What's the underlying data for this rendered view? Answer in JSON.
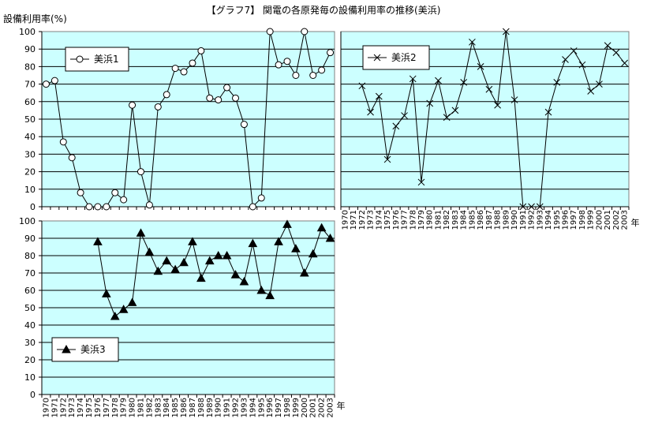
{
  "title": "【グラフ7】 関電の各原発毎の設備利用率の推移(美浜)",
  "ylabel": "設備利用率(%)",
  "xunit": "年",
  "colors": {
    "plot_bg": "#ccffff",
    "line": "#000000",
    "grid": "#000000"
  },
  "chart_data": [
    {
      "type": "line",
      "name": "美浜1",
      "marker": "circle",
      "legend_position": "top-left",
      "ylim": [
        0,
        100
      ],
      "ytick_step": 10,
      "x": [
        1970,
        1971,
        1972,
        1973,
        1974,
        1975,
        1976,
        1977,
        1978,
        1979,
        1980,
        1981,
        1982,
        1983,
        1984,
        1985,
        1986,
        1987,
        1988,
        1989,
        1990,
        1991,
        1992,
        1993,
        1994,
        1995,
        1996,
        1997,
        1998,
        1999,
        2000,
        2001,
        2002,
        2003
      ],
      "values": [
        70,
        72,
        37,
        28,
        8,
        0,
        0,
        0,
        8,
        4,
        58,
        20,
        1,
        57,
        64,
        79,
        77,
        82,
        89,
        62,
        61,
        68,
        62,
        47,
        0,
        5,
        100,
        81,
        83,
        75,
        100,
        75,
        78,
        88
      ],
      "show_x_labels": false
    },
    {
      "type": "line",
      "name": "美浜2",
      "marker": "x",
      "legend_position": "top-left",
      "ylim": [
        0,
        100
      ],
      "ytick_step": 10,
      "show_y_labels": false,
      "x": [
        1970,
        1971,
        1972,
        1973,
        1974,
        1975,
        1976,
        1977,
        1978,
        1979,
        1980,
        1981,
        1982,
        1983,
        1984,
        1985,
        1986,
        1987,
        1988,
        1989,
        1990,
        1991,
        1992,
        1993,
        1994,
        1995,
        1996,
        1997,
        1998,
        1999,
        2000,
        2001,
        2002,
        2003
      ],
      "values": [
        null,
        null,
        69,
        54,
        63,
        27,
        46,
        52,
        73,
        14,
        59,
        72,
        51,
        55,
        71,
        94,
        80,
        67,
        58,
        100,
        61,
        0,
        0,
        0,
        54,
        71,
        84,
        89,
        81,
        66,
        70,
        92,
        88,
        82
      ],
      "show_x_labels": true
    },
    {
      "type": "line",
      "name": "美浜3",
      "marker": "triangle",
      "legend_position": "bottom-left",
      "ylim": [
        0,
        100
      ],
      "ytick_step": 10,
      "x": [
        1970,
        1971,
        1972,
        1973,
        1974,
        1975,
        1976,
        1977,
        1978,
        1979,
        1980,
        1981,
        1982,
        1983,
        1984,
        1985,
        1986,
        1987,
        1988,
        1989,
        1990,
        1991,
        1992,
        1993,
        1994,
        1995,
        1996,
        1997,
        1998,
        1999,
        2000,
        2001,
        2002,
        2003
      ],
      "values": [
        null,
        null,
        null,
        null,
        null,
        null,
        88,
        58,
        45,
        49,
        53,
        93,
        82,
        71,
        77,
        72,
        76,
        88,
        67,
        77,
        80,
        80,
        69,
        65,
        87,
        60,
        57,
        88,
        98,
        84,
        70,
        81,
        96,
        90
      ],
      "show_x_labels": true
    }
  ]
}
